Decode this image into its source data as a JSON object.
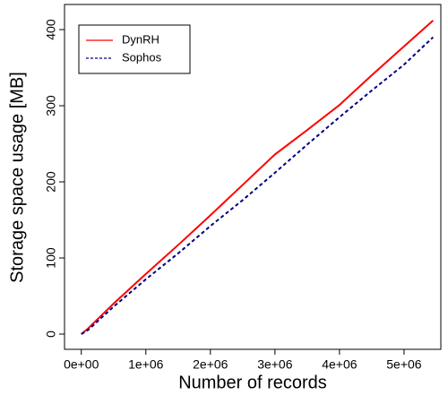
{
  "chart_data": {
    "type": "line",
    "x_label": "Number of records",
    "y_label": "Storage space usage [MB]",
    "x": [
      0,
      100000,
      500000,
      1000000,
      1500000,
      2000000,
      2500000,
      3000000,
      3500000,
      4000000,
      4500000,
      5000000,
      5450000
    ],
    "series": [
      {
        "name": "DynRH",
        "color": "#ff0000",
        "dash": false,
        "values": [
          0,
          7,
          40,
          79,
          117,
          156,
          196,
          236,
          268,
          301,
          340,
          378,
          412
        ]
      },
      {
        "name": "Sophos",
        "color": "#000080",
        "dash": true,
        "values": [
          0,
          5,
          36,
          72,
          106,
          142,
          176,
          212,
          249,
          285,
          320,
          354,
          390
        ]
      }
    ],
    "xlim": [
      -260000,
      5570000
    ],
    "ylim": [
      -20,
      433
    ],
    "xticks": [
      {
        "value": 0,
        "label": "0e+00"
      },
      {
        "value": 1000000,
        "label": "1e+06"
      },
      {
        "value": 2000000,
        "label": "2e+06"
      },
      {
        "value": 3000000,
        "label": "3e+06"
      },
      {
        "value": 4000000,
        "label": "4e+06"
      },
      {
        "value": 5000000,
        "label": "5e+06"
      }
    ],
    "yticks": [
      0,
      100,
      200,
      300,
      400
    ],
    "legend": "top-left"
  }
}
